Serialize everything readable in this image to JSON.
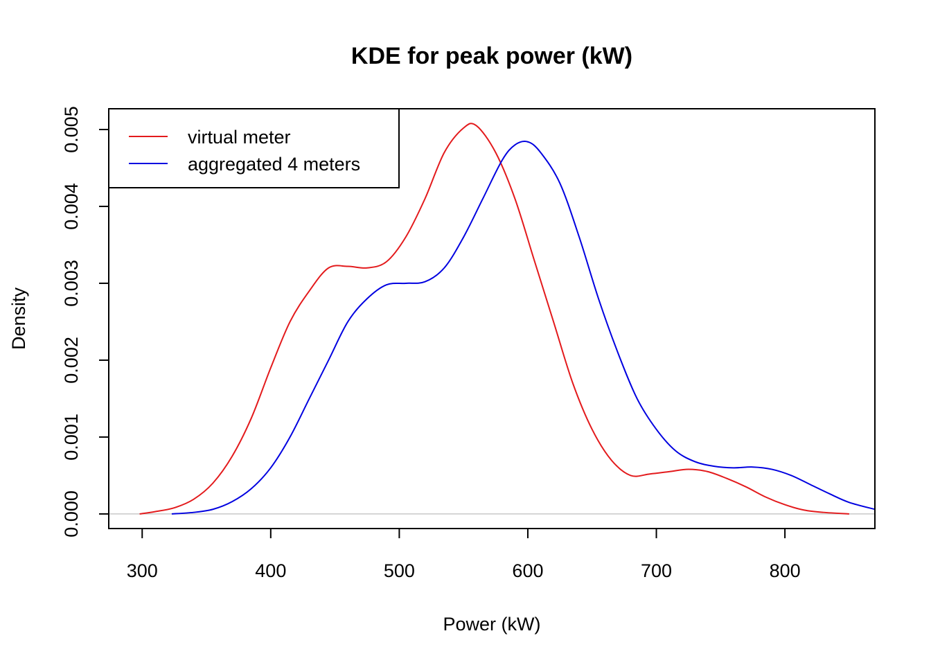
{
  "chart_data": {
    "type": "line",
    "title": "KDE for peak power (kW)",
    "xlabel": "Power (kW)",
    "ylabel": "Density",
    "xlim": [
      274,
      870
    ],
    "ylim": [
      -0.00019,
      0.00527
    ],
    "x_ticks": [
      300,
      400,
      500,
      600,
      700,
      800
    ],
    "x_tick_labels": [
      "300",
      "400",
      "500",
      "600",
      "700",
      "800"
    ],
    "y_ticks": [
      0.0,
      0.001,
      0.002,
      0.003,
      0.004,
      0.005
    ],
    "y_tick_labels": [
      "0.000",
      "0.001",
      "0.002",
      "0.003",
      "0.004",
      "0.005"
    ],
    "zero_line": true,
    "grid": false,
    "legend_position": "top-left",
    "colors": {
      "virtual_meter": "#e31a1c",
      "aggregated": "#0000e0",
      "zero_line": "#c8c8c8"
    },
    "series": [
      {
        "name": "virtual meter",
        "color": "#e31a1c",
        "x": [
          298,
          310,
          325,
          340,
          355,
          370,
          385,
          400,
          415,
          430,
          445,
          460,
          475,
          490,
          505,
          520,
          535,
          550,
          560,
          575,
          590,
          605,
          620,
          635,
          650,
          665,
          680,
          695,
          710,
          725,
          740,
          755,
          770,
          785,
          800,
          815,
          830,
          850
        ],
        "y": [
          0.0,
          3e-05,
          8e-05,
          0.00019,
          0.0004,
          0.00075,
          0.00125,
          0.0019,
          0.0025,
          0.0029,
          0.0032,
          0.00322,
          0.0032,
          0.00328,
          0.0036,
          0.0041,
          0.0047,
          0.00502,
          0.00505,
          0.0047,
          0.0041,
          0.0033,
          0.0025,
          0.0017,
          0.0011,
          0.0007,
          0.0005,
          0.00052,
          0.00055,
          0.00058,
          0.00055,
          0.00046,
          0.00035,
          0.00022,
          0.00012,
          5e-05,
          2e-05,
          0.0
        ]
      },
      {
        "name": "aggregated 4 meters",
        "color": "#0000e0",
        "x": [
          323,
          340,
          355,
          370,
          385,
          400,
          415,
          430,
          445,
          460,
          475,
          490,
          505,
          520,
          535,
          550,
          565,
          580,
          590,
          600,
          610,
          625,
          640,
          655,
          670,
          685,
          700,
          715,
          730,
          745,
          760,
          775,
          790,
          805,
          820,
          835,
          850,
          870
        ],
        "y": [
          0.0,
          2e-05,
          6e-05,
          0.00016,
          0.00033,
          0.0006,
          0.001,
          0.0015,
          0.002,
          0.0025,
          0.0028,
          0.00298,
          0.003,
          0.00302,
          0.0032,
          0.0036,
          0.0041,
          0.0046,
          0.0048,
          0.00484,
          0.0047,
          0.0043,
          0.0036,
          0.0028,
          0.0021,
          0.0015,
          0.0011,
          0.00082,
          0.00068,
          0.00062,
          0.0006,
          0.00061,
          0.00058,
          0.0005,
          0.00038,
          0.00026,
          0.00015,
          6e-05
        ]
      }
    ]
  }
}
